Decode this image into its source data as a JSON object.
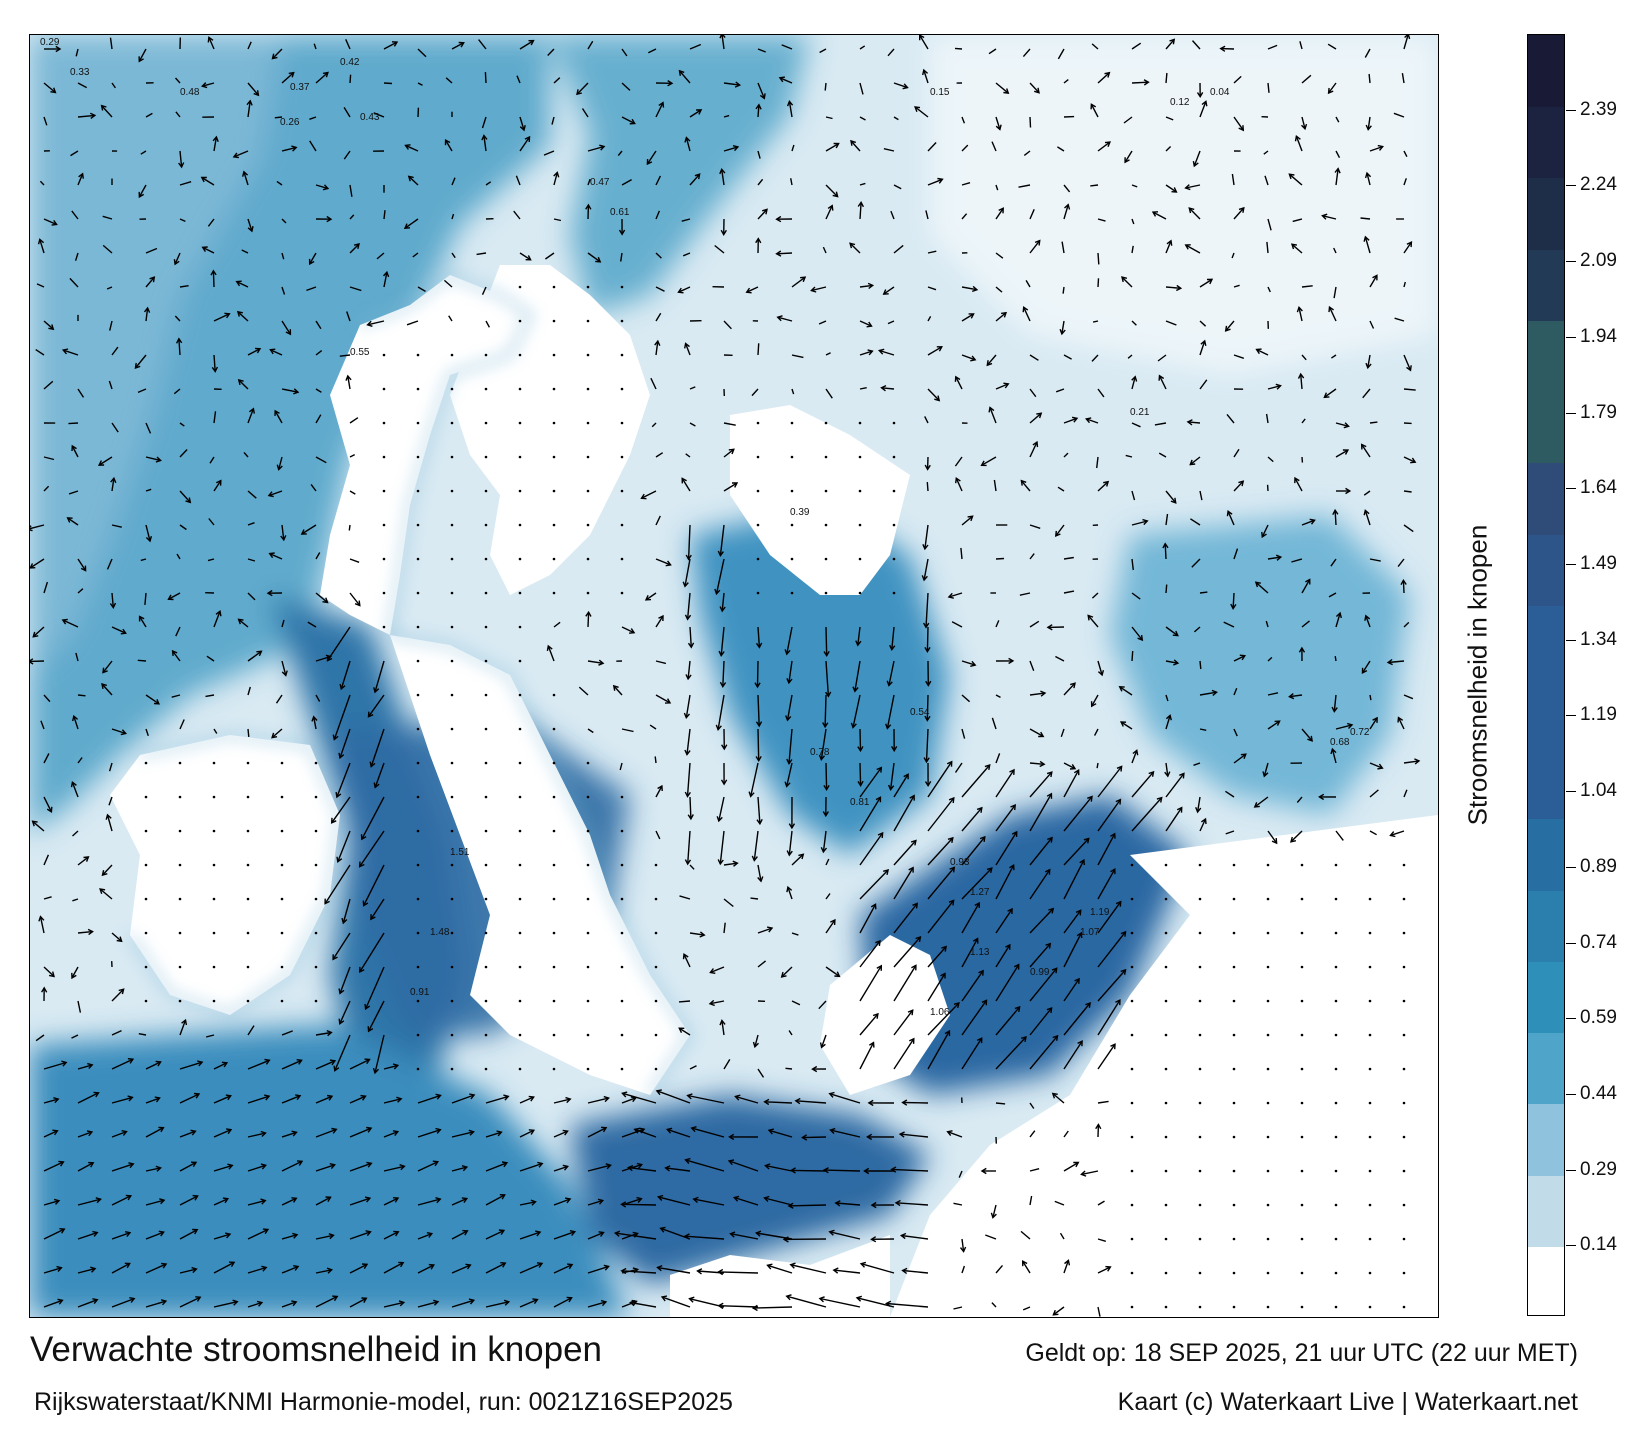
{
  "title": "Verwachte stroomsnelheid in knopen",
  "valid_time": "Geldt op: 18 SEP 2025, 21 uur UTC (22 uur MET)",
  "model_run": "Rijkswaterstaat/KNMI Harmonie-model, run: 0021Z16SEP2025",
  "credit": "Kaart (c) Waterkaart Live | Waterkaart.net",
  "colorbar": {
    "title": "Stroomsnelheid in knopen",
    "min": 0,
    "max": 2.54,
    "ticks": [
      "0.14",
      "0.29",
      "0.44",
      "0.59",
      "0.74",
      "0.89",
      "1.04",
      "1.19",
      "1.34",
      "1.49",
      "1.64",
      "1.79",
      "1.94",
      "2.09",
      "2.24",
      "2.39"
    ],
    "tick_values": [
      0.14,
      0.29,
      0.44,
      0.59,
      0.74,
      0.89,
      1.04,
      1.19,
      1.34,
      1.49,
      1.64,
      1.79,
      1.94,
      2.09,
      2.24,
      2.39
    ],
    "colors": [
      "#ffffff",
      "#c2dbe9",
      "#8fc2dc",
      "#4ea5c9",
      "#2e8fb9",
      "#2a7fad",
      "#276ea2",
      "#2b5d97",
      "#2b5d97",
      "#2b5d97",
      "#2d5589",
      "#2f4c78",
      "#2e5a62",
      "#2e5a62",
      "#223a55",
      "#1e2e48",
      "#1b2340",
      "#181a36"
    ]
  },
  "colors": {
    "water_low": "#d7e9f2",
    "water_mid": "#4fa2c8",
    "water_high": "#2c6fa4",
    "land": "#ffffff",
    "arrow": "#000000"
  },
  "sample_labels": [
    "0.29",
    "0.33",
    "0.48",
    "0.37",
    "0.42",
    "0.26",
    "0.43",
    "0.15",
    "0.12",
    "0.04",
    "0.55",
    "0.61",
    "0.47",
    "0.78",
    "0.81",
    "1.51",
    "1.48",
    "1.27",
    "1.13",
    "1.06",
    "0.99",
    "0.93",
    "1.07",
    "1.19",
    "0.91",
    "0.72",
    "0.68",
    "0.54",
    "0.39",
    "0.21"
  ]
}
